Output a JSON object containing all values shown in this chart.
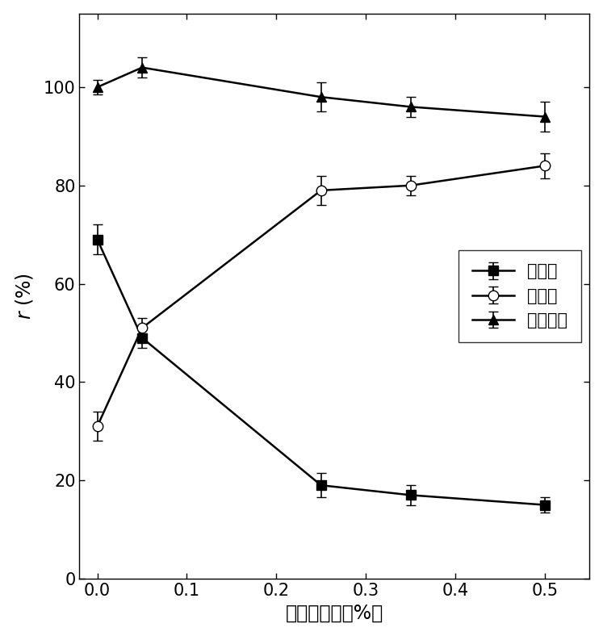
{
  "x": [
    0.0,
    0.05,
    0.25,
    0.35,
    0.5
  ],
  "series": [
    {
      "name": "贴壁率",
      "y": [
        69,
        49,
        19,
        17,
        15
      ],
      "yerr": [
        3,
        2,
        2.5,
        2,
        1.5
      ],
      "marker": "s",
      "marker_face": "black",
      "marker_edge": "black",
      "linestyle": "-",
      "color": "black",
      "markersize": 8
    },
    {
      "name": "悬浮率",
      "y": [
        31,
        51,
        79,
        80,
        84
      ],
      "yerr": [
        3,
        2,
        3,
        2,
        2.5
      ],
      "marker": "o",
      "marker_face": "white",
      "marker_edge": "black",
      "linestyle": "-",
      "color": "black",
      "markersize": 9
    },
    {
      "name": "总生长率",
      "y": [
        100,
        104,
        98,
        96,
        94
      ],
      "yerr": [
        1.5,
        2,
        3,
        2,
        3
      ],
      "marker": "^",
      "marker_face": "black",
      "marker_edge": "black",
      "linestyle": "-",
      "color": "black",
      "markersize": 9
    }
  ],
  "xlabel": "黄原胶浓度（%）",
  "ylabel_r": "r",
  "ylabel_pct": "(%)",
  "xlim": [
    -0.02,
    0.55
  ],
  "ylim": [
    0,
    115
  ],
  "xticks": [
    0.0,
    0.1,
    0.2,
    0.3,
    0.4,
    0.5
  ],
  "yticks": [
    0,
    20,
    40,
    60,
    80,
    100
  ],
  "legend_loc": "center right",
  "figure_width": 7.47,
  "figure_height": 7.88,
  "dpi": 100,
  "font_size_label": 17,
  "font_size_tick": 15,
  "font_size_legend": 15,
  "linewidth": 1.8,
  "capsize": 4,
  "background_color": "#ffffff"
}
